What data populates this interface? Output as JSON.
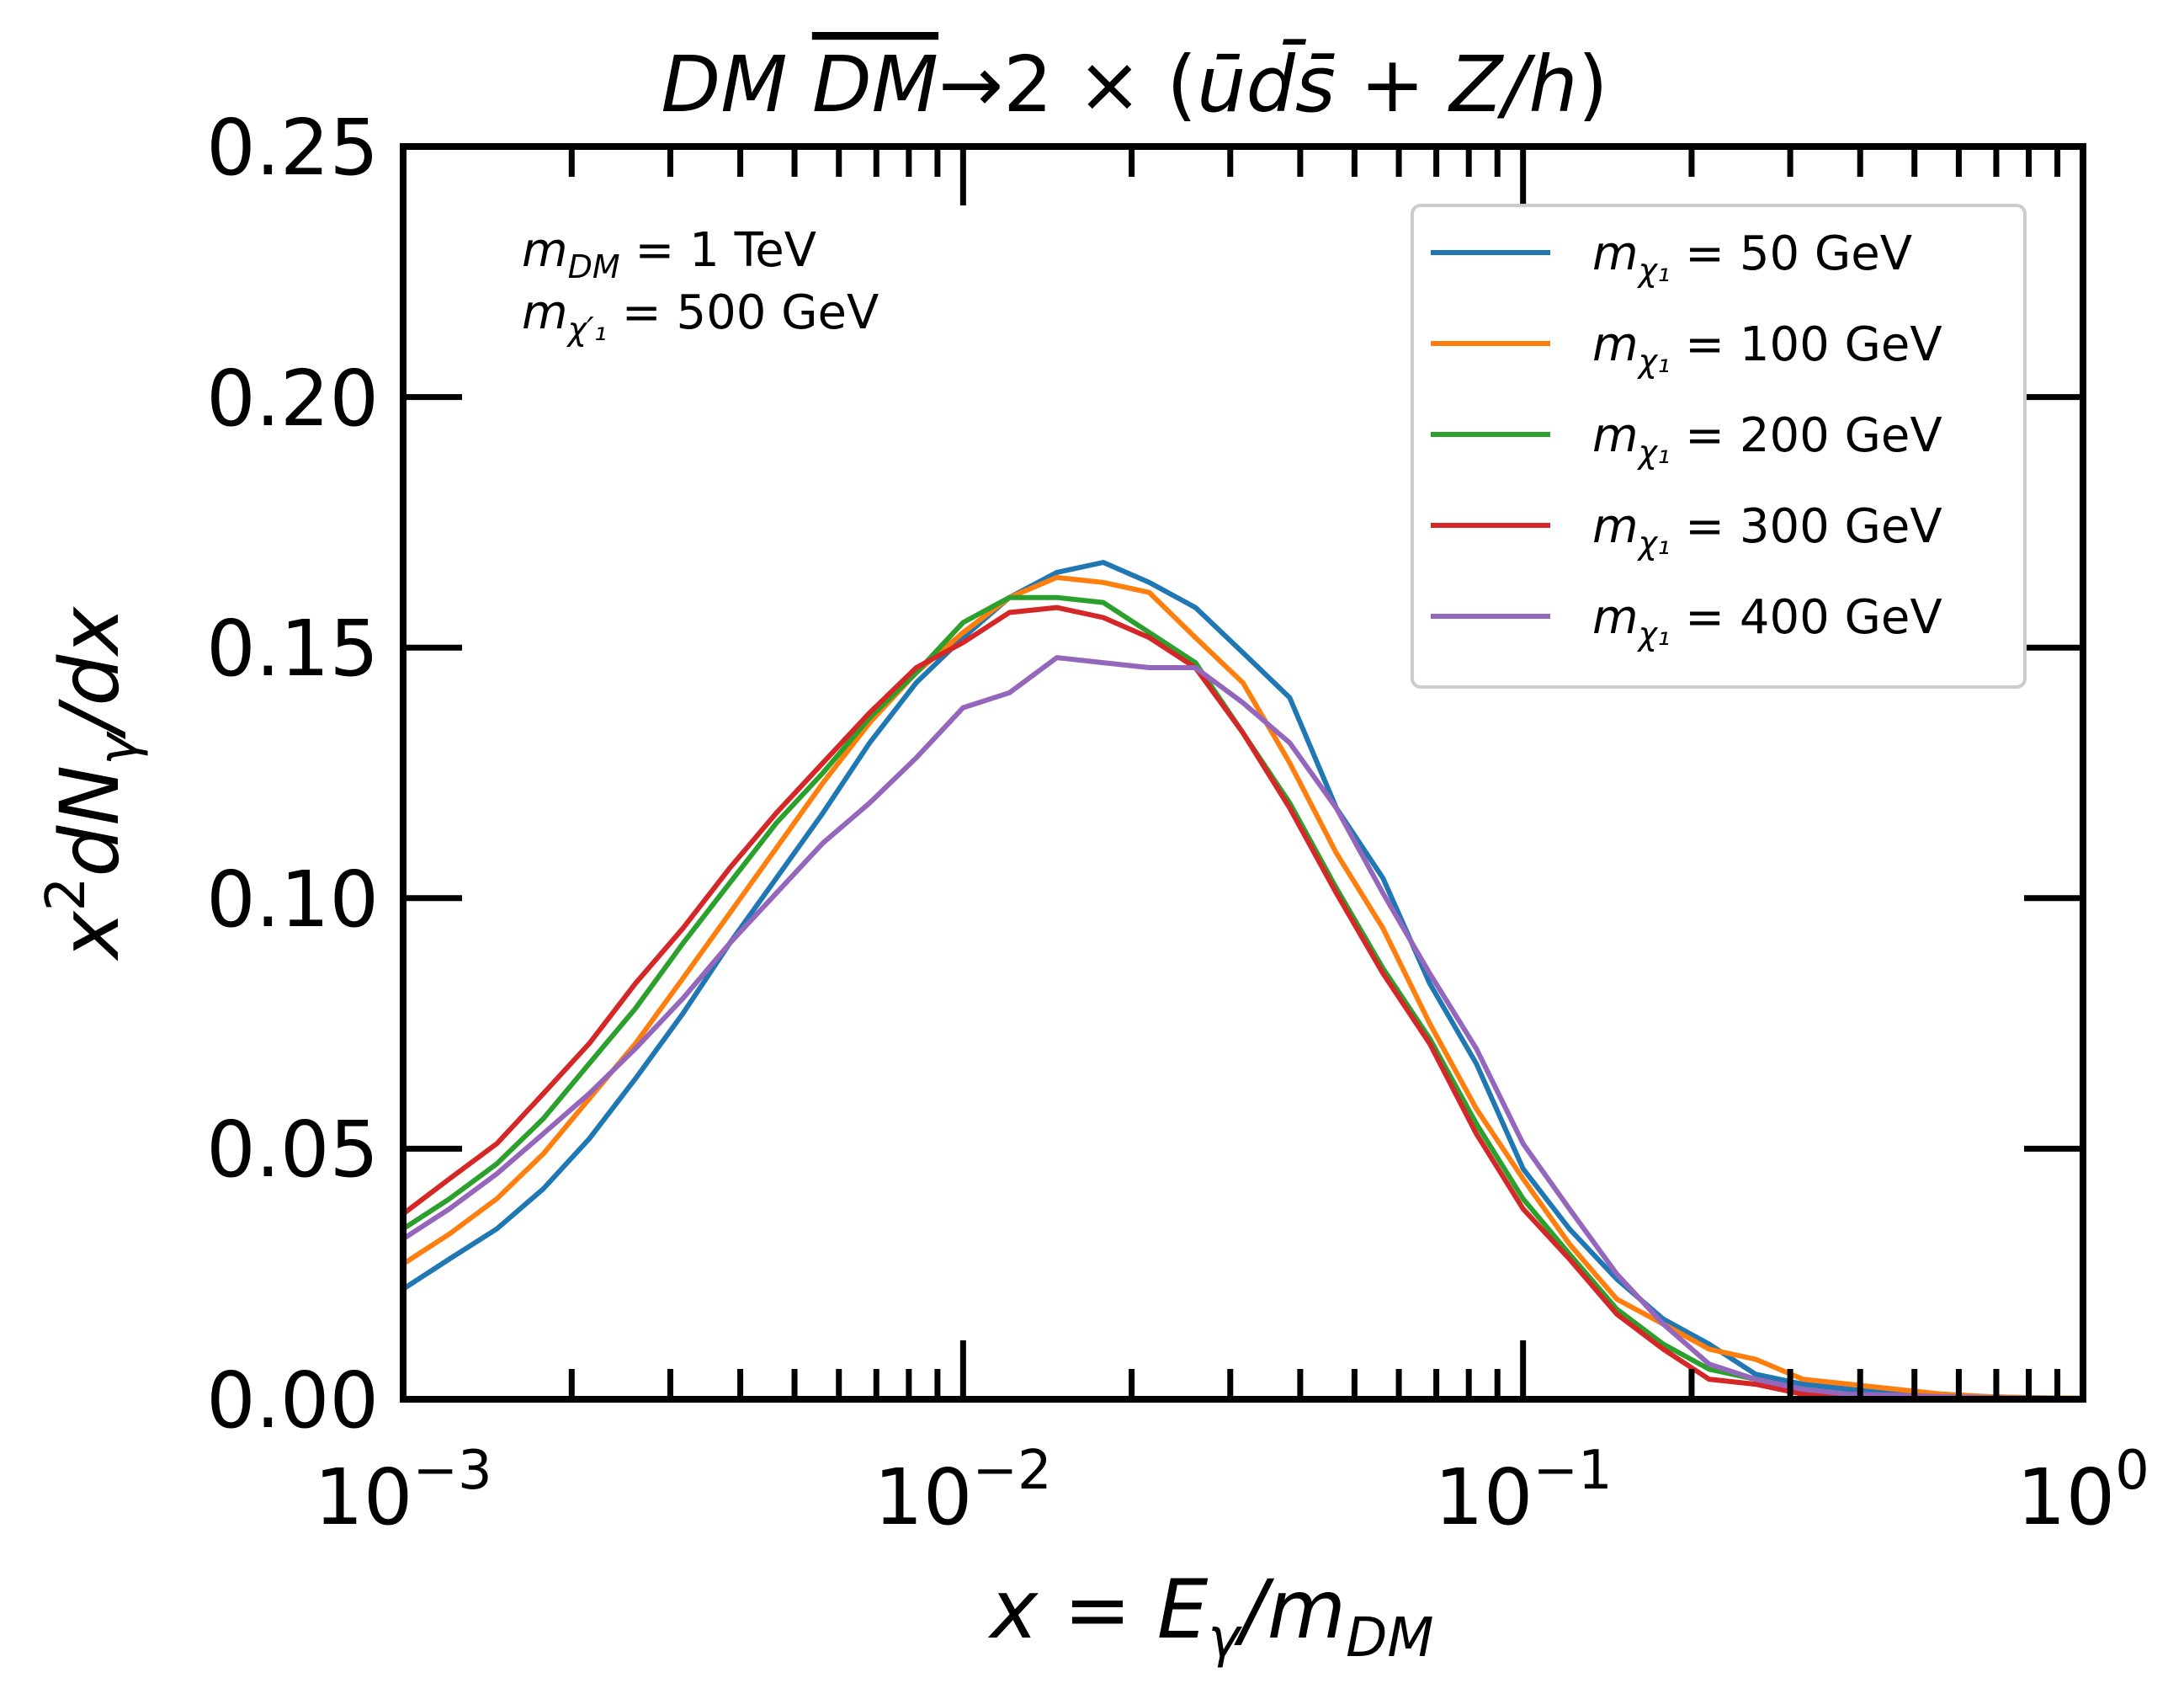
{
  "chart_data": {
    "type": "line",
    "title": "DM DM̅ → 2 × (ūd̄s̄ + Z/h)",
    "title_parts": {
      "lhs_a": "DM",
      "lhs_b": "DM",
      "arrow": "→2 × (",
      "quarks": "ūd̄s̄",
      "plus": " + ",
      "boson": "Z/h",
      "close": ")"
    },
    "xlabel": "x = Eγ/mDM",
    "xlabel_parts": {
      "lhs": "x",
      "eq": " = ",
      "e": "E",
      "gamma": "γ",
      "slash": "/m",
      "sub": "DM"
    },
    "ylabel": "x²dNγ/dx",
    "ylabel_parts": {
      "a": "x",
      "sup": "2",
      "b": "dN",
      "sub": "γ",
      "c": "/dx"
    },
    "xscale": "log",
    "xlim": [
      0.001,
      1
    ],
    "ylim": [
      0,
      0.25
    ],
    "x_ticks": [
      {
        "value": 0.001,
        "base": "10",
        "exp": "−3"
      },
      {
        "value": 0.01,
        "base": "10",
        "exp": "−2"
      },
      {
        "value": 0.1,
        "base": "10",
        "exp": "−1"
      },
      {
        "value": 1,
        "base": "10",
        "exp": "0"
      }
    ],
    "y_ticks": [
      "0.00",
      "0.05",
      "0.10",
      "0.15",
      "0.20",
      "0.25"
    ],
    "annotation": [
      {
        "sym": "m",
        "sub": "DM",
        "rest": " = 1 TeV"
      },
      {
        "sym": "m",
        "sub": "χ′₁",
        "rest": " = 500 GeV"
      }
    ],
    "legend_position": "upper-right",
    "x": [
      0.001,
      0.00121,
      0.00147,
      0.00178,
      0.00215,
      0.0026,
      0.00316,
      0.00383,
      0.00464,
      0.00562,
      0.00681,
      0.00825,
      0.01,
      0.0121,
      0.0147,
      0.0178,
      0.0215,
      0.026,
      0.0316,
      0.0383,
      0.0464,
      0.0562,
      0.0681,
      0.0825,
      0.1,
      0.121,
      0.147,
      0.178,
      0.215,
      0.26,
      0.316,
      0.383,
      0.464,
      0.562,
      0.681,
      0.825,
      1.0
    ],
    "series": [
      {
        "name": "50 GeV",
        "sym": "m",
        "sub": "χ₁",
        "rest": " = 50 GeV",
        "color": "#1f77b4",
        "values": [
          0.022,
          0.028,
          0.034,
          0.042,
          0.052,
          0.064,
          0.077,
          0.091,
          0.104,
          0.117,
          0.131,
          0.143,
          0.152,
          0.16,
          0.165,
          0.167,
          0.163,
          0.158,
          0.149,
          0.14,
          0.118,
          0.104,
          0.083,
          0.067,
          0.046,
          0.034,
          0.024,
          0.016,
          0.011,
          0.005,
          0.003,
          0.002,
          0.001,
          0.001,
          0.0005,
          0.0003,
          0.0002
        ]
      },
      {
        "name": "100 GeV",
        "sym": "m",
        "sub": "χ₁",
        "rest": " = 100 GeV",
        "color": "#ff7f0e",
        "values": [
          0.027,
          0.033,
          0.04,
          0.049,
          0.06,
          0.071,
          0.084,
          0.097,
          0.11,
          0.123,
          0.135,
          0.145,
          0.153,
          0.16,
          0.164,
          0.163,
          0.161,
          0.152,
          0.143,
          0.127,
          0.109,
          0.094,
          0.075,
          0.058,
          0.044,
          0.031,
          0.02,
          0.015,
          0.01,
          0.008,
          0.004,
          0.003,
          0.002,
          0.001,
          0.0005,
          0.0003,
          0.0002
        ]
      },
      {
        "name": "200 GeV",
        "sym": "m",
        "sub": "χ₁",
        "rest": " = 200 GeV",
        "color": "#2ca02c",
        "values": [
          0.034,
          0.04,
          0.047,
          0.056,
          0.067,
          0.078,
          0.091,
          0.103,
          0.115,
          0.125,
          0.136,
          0.145,
          0.155,
          0.16,
          0.16,
          0.159,
          0.153,
          0.147,
          0.133,
          0.119,
          0.102,
          0.086,
          0.072,
          0.055,
          0.04,
          0.029,
          0.018,
          0.011,
          0.006,
          0.004,
          0.002,
          0.001,
          0.0008,
          0.0005,
          0.0003,
          0.0002,
          0.0001
        ]
      },
      {
        "name": "300 GeV",
        "sym": "m",
        "sub": "χ₁",
        "rest": " = 300 GeV",
        "color": "#d62728",
        "values": [
          0.037,
          0.044,
          0.051,
          0.061,
          0.071,
          0.083,
          0.094,
          0.106,
          0.117,
          0.127,
          0.137,
          0.146,
          0.151,
          0.157,
          0.158,
          0.156,
          0.152,
          0.146,
          0.133,
          0.118,
          0.101,
          0.085,
          0.071,
          0.053,
          0.038,
          0.028,
          0.017,
          0.01,
          0.004,
          0.003,
          0.001,
          0.001,
          0.0006,
          0.0004,
          0.0002,
          0.0001,
          0.0001
        ]
      },
      {
        "name": "400 GeV",
        "sym": "m",
        "sub": "χ₁",
        "rest": " = 400 GeV",
        "color": "#9467bd",
        "values": [
          0.032,
          0.038,
          0.045,
          0.053,
          0.061,
          0.07,
          0.08,
          0.091,
          0.101,
          0.111,
          0.119,
          0.128,
          0.138,
          0.141,
          0.148,
          0.147,
          0.146,
          0.146,
          0.139,
          0.131,
          0.118,
          0.101,
          0.085,
          0.07,
          0.051,
          0.038,
          0.025,
          0.015,
          0.007,
          0.004,
          0.002,
          0.001,
          0.0008,
          0.0005,
          0.0003,
          0.0002,
          0.0001
        ]
      }
    ]
  }
}
